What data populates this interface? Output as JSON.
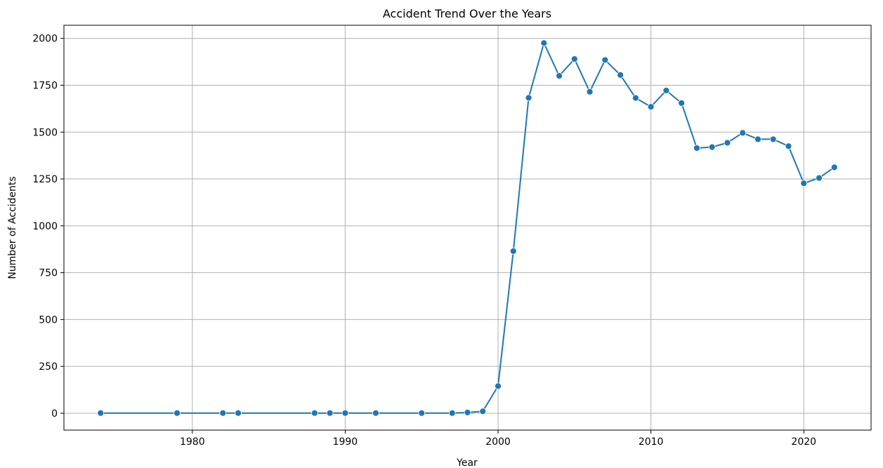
{
  "chart_data": {
    "type": "line",
    "title": "Accident Trend Over the Years",
    "xlabel": "Year",
    "ylabel": "Number of Accidents",
    "xlim": [
      1971.6,
      2024.4
    ],
    "ylim": [
      -90,
      2070
    ],
    "xticks": [
      1980,
      1990,
      2000,
      2010,
      2020
    ],
    "yticks": [
      0,
      250,
      500,
      750,
      1000,
      1250,
      1500,
      1750,
      2000
    ],
    "grid": true,
    "legend": "none",
    "series": [
      {
        "color": "#1f77b4",
        "marker": "circle",
        "x": [
          1974,
          1979,
          1982,
          1983,
          1988,
          1989,
          1990,
          1992,
          1995,
          1997,
          1998,
          1999,
          2000,
          2001,
          2002,
          2003,
          2004,
          2005,
          2006,
          2007,
          2008,
          2009,
          2010,
          2011,
          2012,
          2013,
          2014,
          2015,
          2016,
          2017,
          2018,
          2019,
          2020,
          2021,
          2022
        ],
        "y": [
          1,
          1,
          1,
          1,
          1,
          1,
          1,
          1,
          1,
          1,
          4,
          10,
          145,
          865,
          1683,
          1975,
          1800,
          1890,
          1715,
          1885,
          1805,
          1682,
          1635,
          1722,
          1655,
          1415,
          1420,
          1443,
          1496,
          1462,
          1462,
          1425,
          1227,
          1255,
          1312
        ]
      }
    ]
  }
}
